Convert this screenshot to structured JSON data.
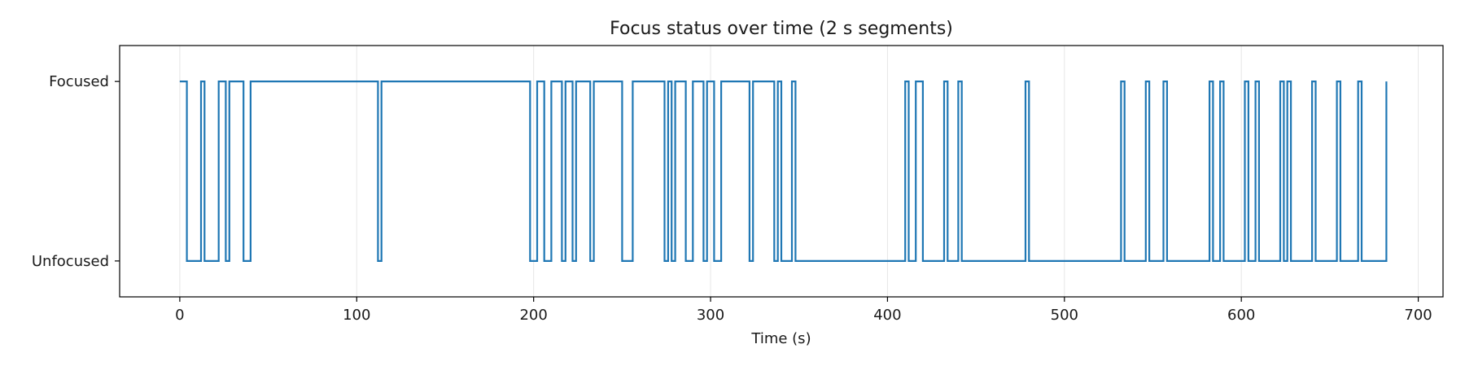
{
  "chart_data": {
    "type": "line",
    "step": true,
    "title": "Focus status over time (2 s segments)",
    "xlabel": "Time (s)",
    "ylabel": "",
    "xlim": [
      -34,
      714
    ],
    "ylim": [
      -0.2,
      1.2
    ],
    "x_ticks": [
      0,
      100,
      200,
      300,
      400,
      500,
      600,
      700
    ],
    "y_ticks": [
      {
        "value": 0,
        "label": "Unfocused"
      },
      {
        "value": 1,
        "label": "Focused"
      }
    ],
    "grid": "vertical",
    "legend": "none",
    "series_color": "#1f77b4",
    "series": [
      {
        "x": [
          0,
          4,
          12,
          14,
          22,
          26,
          28,
          36,
          40,
          112,
          114,
          198,
          202,
          206,
          210,
          216,
          218,
          222,
          224,
          232,
          234,
          250,
          256,
          274,
          276,
          278,
          280,
          286,
          290,
          296,
          298,
          302,
          306,
          322,
          324,
          336,
          338,
          340,
          346,
          348,
          410,
          412,
          416,
          420,
          432,
          434,
          440,
          442,
          478,
          480,
          532,
          534,
          546,
          548,
          556,
          558,
          582,
          584,
          588,
          590,
          602,
          604,
          608,
          610,
          622,
          624,
          626,
          628,
          640,
          642,
          654,
          656,
          666,
          668,
          682
        ],
        "y": [
          1,
          0,
          1,
          0,
          1,
          0,
          1,
          0,
          1,
          0,
          1,
          0,
          1,
          0,
          1,
          0,
          1,
          0,
          1,
          0,
          1,
          0,
          1,
          0,
          1,
          0,
          1,
          0,
          1,
          0,
          1,
          0,
          1,
          0,
          1,
          0,
          1,
          0,
          1,
          0,
          1,
          0,
          1,
          0,
          1,
          0,
          1,
          0,
          1,
          0,
          1,
          0,
          1,
          0,
          1,
          0,
          1,
          0,
          1,
          0,
          1,
          0,
          1,
          0,
          1,
          0,
          1,
          0,
          1,
          0,
          1,
          0,
          1,
          0,
          1
        ]
      }
    ]
  }
}
